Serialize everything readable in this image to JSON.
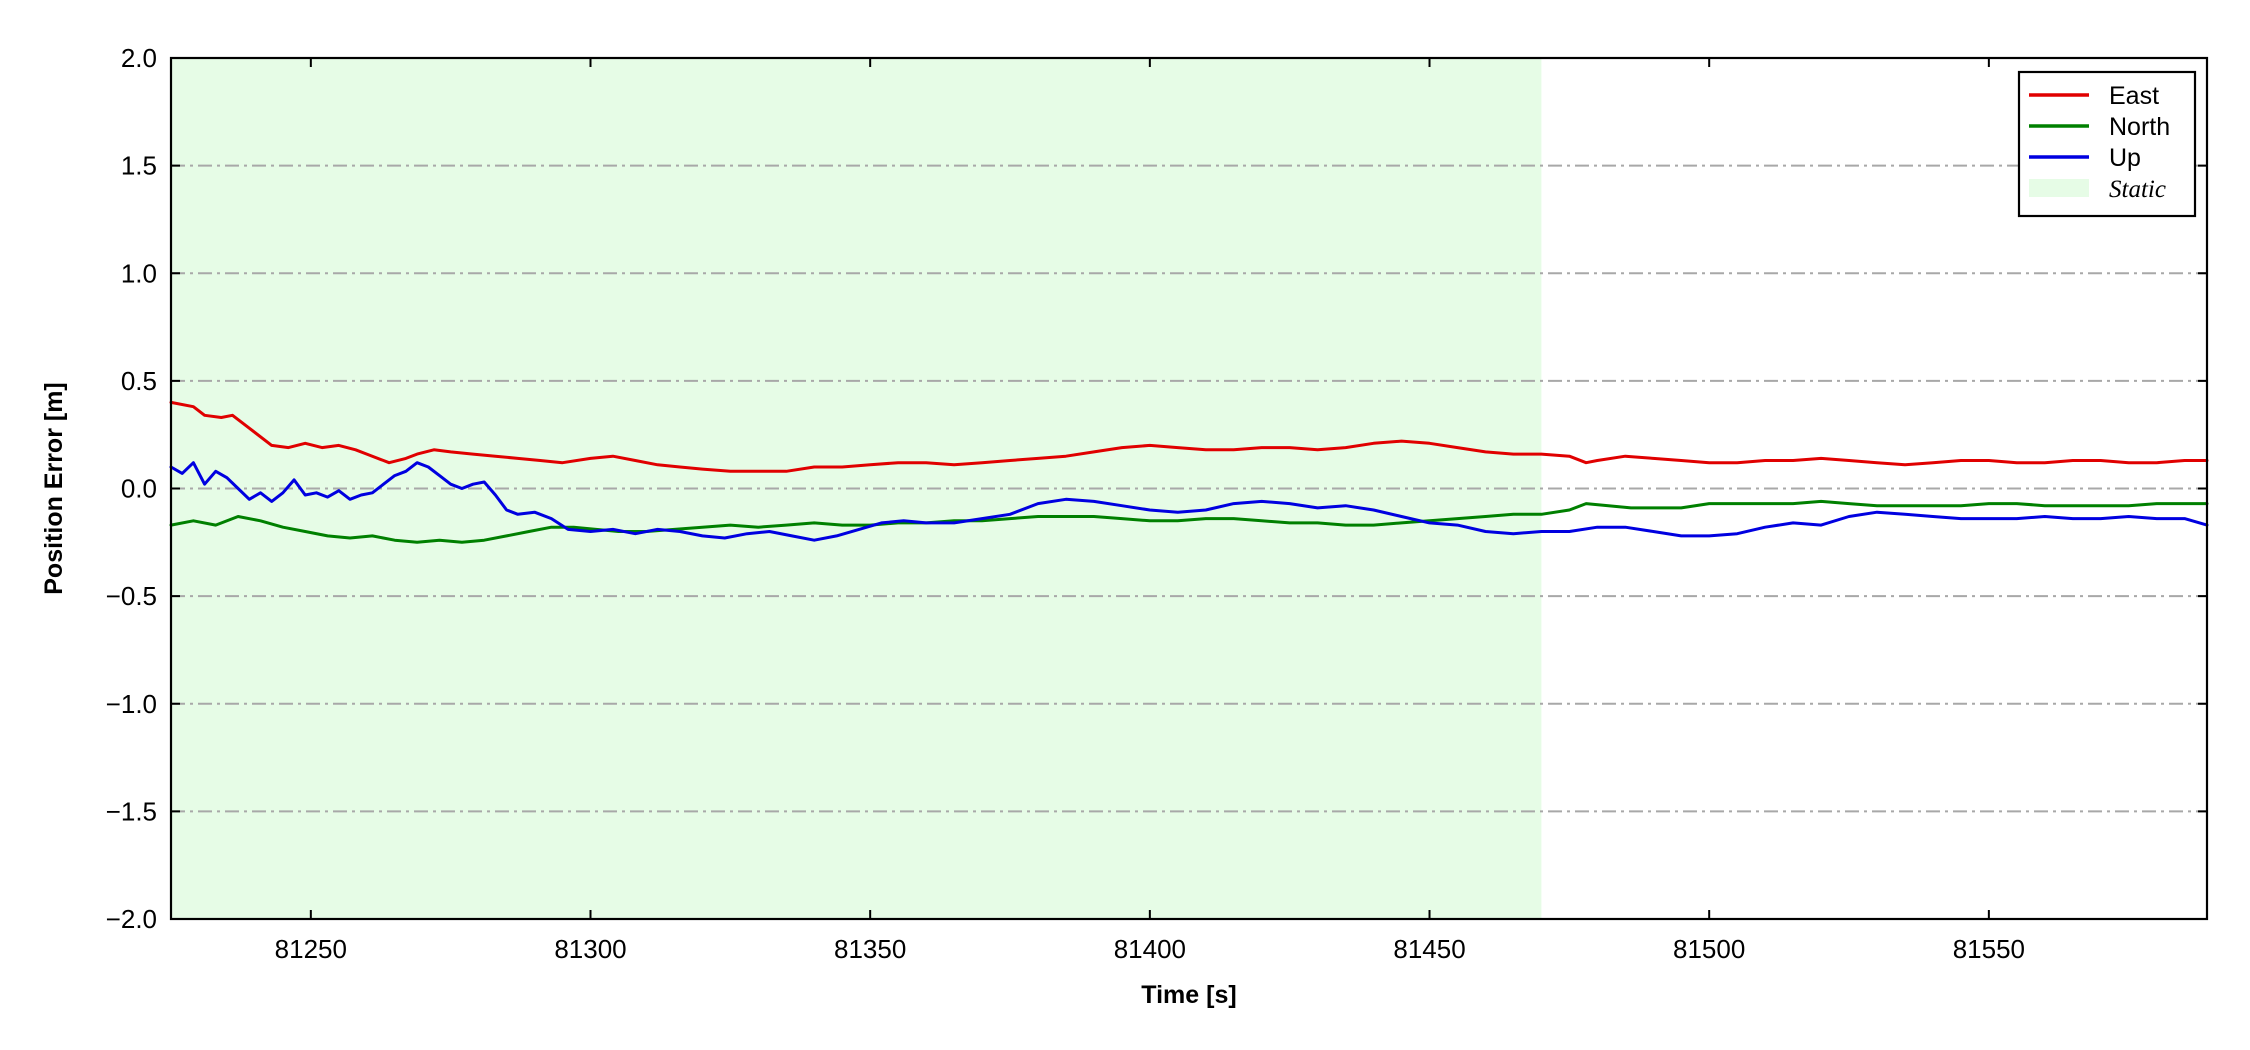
{
  "chart_data": {
    "type": "line",
    "xlabel": "Time [s]",
    "ylabel": "Position Error [m]",
    "xlim": [
      81225,
      81589
    ],
    "ylim": [
      -2.0,
      2.0
    ],
    "xticks": [
      81250,
      81300,
      81350,
      81400,
      81450,
      81500,
      81550
    ],
    "yticks": [
      -2.0,
      -1.5,
      -1.0,
      -0.5,
      0.0,
      0.5,
      1.0,
      1.5,
      2.0
    ],
    "ytick_labels": [
      "−2.0",
      "−1.5",
      "−1.0",
      "−0.5",
      "0.0",
      "0.5",
      "1.0",
      "1.5",
      "2.0"
    ],
    "grid": "horizontal dash-dot",
    "legend_position": "top-right",
    "shaded_region": {
      "label": "Static",
      "x_start": 81225,
      "x_end": 81470,
      "color": "#e6fce6"
    },
    "series": [
      {
        "name": "East",
        "color": "#e00000",
        "x": [
          81225,
          81229,
          81231,
          81234,
          81236,
          81239,
          81243,
          81246,
          81249,
          81252,
          81255,
          81258,
          81260,
          81264,
          81267,
          81269,
          81272,
          81275,
          81279,
          81283,
          81287,
          81291,
          81295,
          81300,
          81304,
          81308,
          81312,
          81316,
          81320,
          81325,
          81330,
          81335,
          81340,
          81345,
          81350,
          81355,
          81360,
          81365,
          81370,
          81375,
          81380,
          81385,
          81390,
          81395,
          81400,
          81405,
          81410,
          81415,
          81420,
          81425,
          81430,
          81435,
          81440,
          81445,
          81450,
          81455,
          81460,
          81465,
          81470,
          81475,
          81478,
          81480,
          81485,
          81490,
          81495,
          81500,
          81505,
          81510,
          81515,
          81520,
          81525,
          81530,
          81535,
          81540,
          81545,
          81550,
          81555,
          81560,
          81565,
          81570,
          81575,
          81580,
          81585,
          81589
        ],
        "y": [
          0.4,
          0.38,
          0.34,
          0.33,
          0.34,
          0.28,
          0.2,
          0.19,
          0.21,
          0.19,
          0.2,
          0.18,
          0.16,
          0.12,
          0.14,
          0.16,
          0.18,
          0.17,
          0.16,
          0.15,
          0.14,
          0.13,
          0.12,
          0.14,
          0.15,
          0.13,
          0.11,
          0.1,
          0.09,
          0.08,
          0.08,
          0.08,
          0.1,
          0.1,
          0.11,
          0.12,
          0.12,
          0.11,
          0.12,
          0.13,
          0.14,
          0.15,
          0.17,
          0.19,
          0.2,
          0.19,
          0.18,
          0.18,
          0.19,
          0.19,
          0.18,
          0.19,
          0.21,
          0.22,
          0.21,
          0.19,
          0.17,
          0.16,
          0.16,
          0.15,
          0.12,
          0.13,
          0.15,
          0.14,
          0.13,
          0.12,
          0.12,
          0.13,
          0.13,
          0.14,
          0.13,
          0.12,
          0.11,
          0.12,
          0.13,
          0.13,
          0.12,
          0.12,
          0.13,
          0.13,
          0.12,
          0.12,
          0.13,
          0.13
        ]
      },
      {
        "name": "North",
        "color": "#008000",
        "x": [
          81225,
          81229,
          81233,
          81237,
          81241,
          81245,
          81249,
          81253,
          81257,
          81261,
          81265,
          81269,
          81273,
          81277,
          81281,
          81285,
          81289,
          81293,
          81297,
          81301,
          81305,
          81310,
          81315,
          81320,
          81325,
          81330,
          81335,
          81340,
          81345,
          81350,
          81355,
          81360,
          81365,
          81370,
          81375,
          81380,
          81385,
          81390,
          81395,
          81400,
          81405,
          81410,
          81415,
          81420,
          81425,
          81430,
          81435,
          81440,
          81445,
          81450,
          81455,
          81460,
          81465,
          81470,
          81475,
          81478,
          81482,
          81486,
          81490,
          81495,
          81500,
          81505,
          81510,
          81515,
          81520,
          81525,
          81530,
          81535,
          81540,
          81545,
          81550,
          81555,
          81560,
          81565,
          81570,
          81575,
          81580,
          81585,
          81589
        ],
        "y": [
          -0.17,
          -0.15,
          -0.17,
          -0.13,
          -0.15,
          -0.18,
          -0.2,
          -0.22,
          -0.23,
          -0.22,
          -0.24,
          -0.25,
          -0.24,
          -0.25,
          -0.24,
          -0.22,
          -0.2,
          -0.18,
          -0.18,
          -0.19,
          -0.2,
          -0.2,
          -0.19,
          -0.18,
          -0.17,
          -0.18,
          -0.17,
          -0.16,
          -0.17,
          -0.17,
          -0.16,
          -0.16,
          -0.15,
          -0.15,
          -0.14,
          -0.13,
          -0.13,
          -0.13,
          -0.14,
          -0.15,
          -0.15,
          -0.14,
          -0.14,
          -0.15,
          -0.16,
          -0.16,
          -0.17,
          -0.17,
          -0.16,
          -0.15,
          -0.14,
          -0.13,
          -0.12,
          -0.12,
          -0.1,
          -0.07,
          -0.08,
          -0.09,
          -0.09,
          -0.09,
          -0.07,
          -0.07,
          -0.07,
          -0.07,
          -0.06,
          -0.07,
          -0.08,
          -0.08,
          -0.08,
          -0.08,
          -0.07,
          -0.07,
          -0.08,
          -0.08,
          -0.08,
          -0.08,
          -0.07,
          -0.07,
          -0.07
        ]
      },
      {
        "name": "Up",
        "color": "#0000e0",
        "x": [
          81225,
          81227,
          81229,
          81231,
          81233,
          81235,
          81237,
          81239,
          81241,
          81243,
          81245,
          81247,
          81249,
          81251,
          81253,
          81255,
          81257,
          81259,
          81261,
          81263,
          81265,
          81267,
          81269,
          81271,
          81273,
          81275,
          81277,
          81279,
          81281,
          81283,
          81285,
          81287,
          81290,
          81293,
          81296,
          81300,
          81304,
          81308,
          81312,
          81316,
          81320,
          81324,
          81328,
          81332,
          81336,
          81340,
          81344,
          81348,
          81352,
          81356,
          81360,
          81365,
          81370,
          81375,
          81380,
          81385,
          81390,
          81395,
          81400,
          81405,
          81410,
          81415,
          81420,
          81425,
          81430,
          81435,
          81440,
          81445,
          81450,
          81455,
          81460,
          81465,
          81470,
          81475,
          81480,
          81485,
          81490,
          81495,
          81500,
          81505,
          81510,
          81515,
          81520,
          81525,
          81530,
          81535,
          81540,
          81545,
          81550,
          81555,
          81560,
          81565,
          81570,
          81575,
          81580,
          81585,
          81589
        ],
        "y": [
          0.1,
          0.07,
          0.12,
          0.02,
          0.08,
          0.05,
          0.0,
          -0.05,
          -0.02,
          -0.06,
          -0.02,
          0.04,
          -0.03,
          -0.02,
          -0.04,
          -0.01,
          -0.05,
          -0.03,
          -0.02,
          0.02,
          0.06,
          0.08,
          0.12,
          0.1,
          0.06,
          0.02,
          0.0,
          0.02,
          0.03,
          -0.03,
          -0.1,
          -0.12,
          -0.11,
          -0.14,
          -0.19,
          -0.2,
          -0.19,
          -0.21,
          -0.19,
          -0.2,
          -0.22,
          -0.23,
          -0.21,
          -0.2,
          -0.22,
          -0.24,
          -0.22,
          -0.19,
          -0.16,
          -0.15,
          -0.16,
          -0.16,
          -0.14,
          -0.12,
          -0.07,
          -0.05,
          -0.06,
          -0.08,
          -0.1,
          -0.11,
          -0.1,
          -0.07,
          -0.06,
          -0.07,
          -0.09,
          -0.08,
          -0.1,
          -0.13,
          -0.16,
          -0.17,
          -0.2,
          -0.21,
          -0.2,
          -0.2,
          -0.18,
          -0.18,
          -0.2,
          -0.22,
          -0.22,
          -0.21,
          -0.18,
          -0.16,
          -0.17,
          -0.13,
          -0.11,
          -0.12,
          -0.13,
          -0.14,
          -0.14,
          -0.14,
          -0.13,
          -0.14,
          -0.14,
          -0.13,
          -0.14,
          -0.14,
          -0.17
        ]
      }
    ]
  }
}
